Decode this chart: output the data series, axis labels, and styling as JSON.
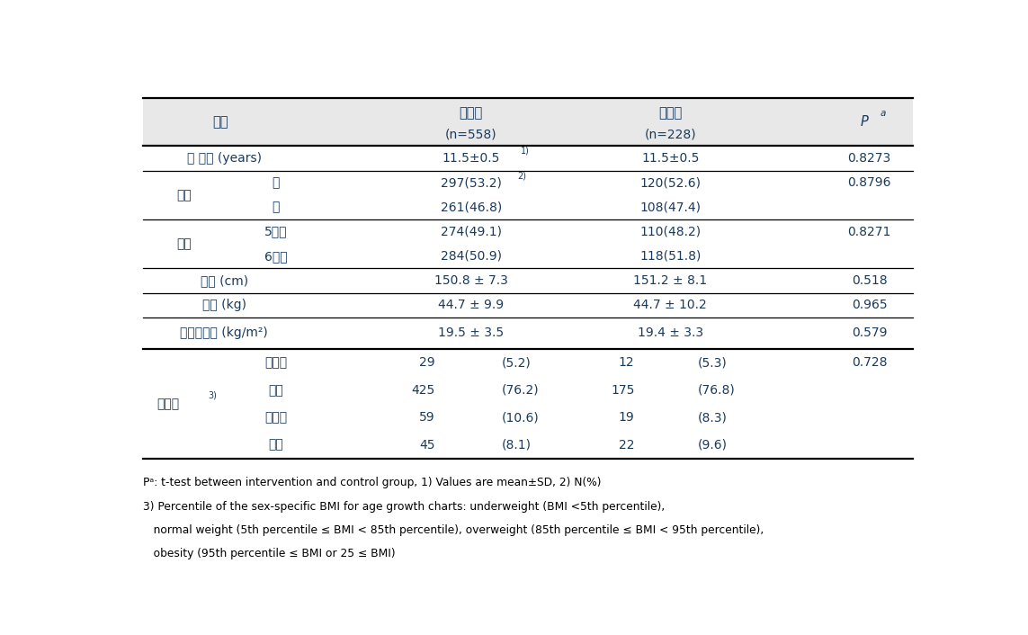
{
  "background_color": "#ffffff",
  "header_bg": "#e8e8e8",
  "blue_color": "#1a3a5c",
  "col1_label": "항목",
  "col2_label": "중재군",
  "col2_sub": "(n=558)",
  "col3_label": "대조군",
  "col3_sub": "(n=228)",
  "col4_label": "P",
  "rows": [
    {
      "cat": "만 나이 (years)",
      "sub": "",
      "col2": "11.5±0.5",
      "col2_sup": "1)",
      "col3": "11.5±0.5",
      "col3_sup": "",
      "p": "0.8273",
      "type": "single"
    },
    {
      "cat": "성별",
      "sub": "남",
      "col2": "297(53.2)",
      "col2_sup": "2)",
      "col3": "120(52.6)",
      "col3_sup": "",
      "p": "0.8796",
      "type": "multi_first"
    },
    {
      "cat": "",
      "sub": "여",
      "col2": "261(46.8)",
      "col2_sup": "",
      "col3": "108(47.4)",
      "col3_sup": "",
      "p": "",
      "type": "multi_cont"
    },
    {
      "cat": "학년",
      "sub": "5학년",
      "col2": "274(49.1)",
      "col2_sup": "",
      "col3": "110(48.2)",
      "col3_sup": "",
      "p": "0.8271",
      "type": "multi_first"
    },
    {
      "cat": "",
      "sub": "6학년",
      "col2": "284(50.9)",
      "col2_sup": "",
      "col3": "118(51.8)",
      "col3_sup": "",
      "p": "",
      "type": "multi_cont"
    },
    {
      "cat": "신장 (cm)",
      "sub": "",
      "col2": "150.8 ± 7.3",
      "col2_sup": "",
      "col3": "151.2 ± 8.1",
      "col3_sup": "",
      "p": "0.518",
      "type": "single"
    },
    {
      "cat": "체중 (kg)",
      "sub": "",
      "col2": "44.7 ± 9.9",
      "col2_sup": "",
      "col3": "44.7 ± 10.2",
      "col3_sup": "",
      "p": "0.965",
      "type": "single"
    },
    {
      "cat": "체질량지수 (kg/m²)",
      "sub": "",
      "col2": "19.5 ± 3.5",
      "col2_sup": "",
      "col3": "19.4 ± 3.3",
      "col3_sup": "",
      "p": "0.579",
      "type": "single_bmi"
    },
    {
      "cat": "비만도",
      "sub": "저체중",
      "n2": "29",
      "p2": "(5.2)",
      "n3": "12",
      "p3": "(5.3)",
      "p": "0.728",
      "type": "obesity_first"
    },
    {
      "cat": "",
      "sub": "정상",
      "n2": "425",
      "p2": "(76.2)",
      "n3": "175",
      "p3": "(76.8)",
      "p": "",
      "type": "obesity_cont"
    },
    {
      "cat": "",
      "sub": "과체중",
      "n2": "59",
      "p2": "(10.6)",
      "n3": "19",
      "p3": "(8.3)",
      "p": "",
      "type": "obesity_cont"
    },
    {
      "cat": "",
      "sub": "비만",
      "n2": "45",
      "p2": "(8.1)",
      "n3": "22",
      "p3": "(9.6)",
      "p": "",
      "type": "obesity_cont"
    }
  ],
  "footnote1": "Pᵃ: t-test between intervention and control group, 1) Values are mean±SD, 2) N(%)",
  "footnote2": "3) Percentile of the sex-specific BMI for age growth charts: underweight (BMI <5th percentile),",
  "footnote3": "   normal weight (5th percentile ≤ BMI < 85th percentile), overweight (85th percentile ≤ BMI < 95th percentile),",
  "footnote4": "   obesity (95th percentile ≤ BMI or 25 ≤ BMI)"
}
